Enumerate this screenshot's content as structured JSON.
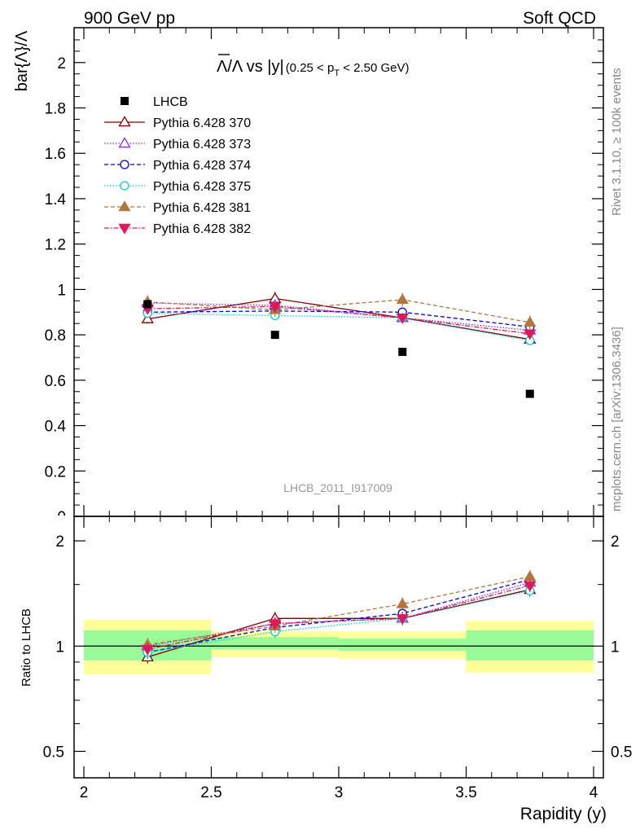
{
  "header": {
    "left": "900 GeV pp",
    "right": "Soft QCD"
  },
  "side_labels": {
    "rivet": "Rivet 3.1.10, ≥ 100k events",
    "mcplots": "mcplots.cern.ch [arXiv:1306.3436]"
  },
  "watermark": "LHCB_2011_I917009",
  "chart_data": [
    {
      "type": "scatter",
      "title_main": "Λ/Λ vs |y|",
      "title_cut": "(0.25 < p",
      "title_cut_sub": "T",
      "title_cut_end": " < 2.50 GeV)",
      "ylabel": "bar{Λ}/Λ",
      "xlim": [
        2,
        4
      ],
      "ylim": [
        0,
        2.15
      ],
      "yticks": [
        0,
        0.2,
        0.4,
        0.6,
        0.8,
        1,
        1.2,
        1.4,
        1.6,
        1.8,
        2
      ],
      "ytick_labels": [
        "0",
        "0.2",
        "0.4",
        "0.6",
        "0.8",
        "1",
        "1.2",
        "1.4",
        "1.6",
        "1.8",
        "2"
      ],
      "x": [
        2.25,
        2.75,
        3.25,
        3.75
      ],
      "data": {
        "name": "LHCB",
        "values": [
          0.935,
          0.8,
          0.725,
          0.54
        ],
        "color": "#000000"
      },
      "series": [
        {
          "name": "Pythia 6.428 370",
          "values": [
            0.87,
            0.96,
            0.875,
            0.78
          ],
          "err": [
            0.02,
            0.03,
            0.02,
            0.02
          ],
          "color": "#7f0000",
          "dash": "",
          "marker": "triangle-open"
        },
        {
          "name": "Pythia 6.428 373",
          "values": [
            0.94,
            0.93,
            0.875,
            0.82
          ],
          "err": [
            0.02,
            0.02,
            0.02,
            0.02
          ],
          "color": "#8a2be2",
          "dash": "1.5,2",
          "marker": "triangle-open"
        },
        {
          "name": "Pythia 6.428 374",
          "values": [
            0.9,
            0.905,
            0.9,
            0.835
          ],
          "err": [
            0.02,
            0.02,
            0.02,
            0.02
          ],
          "color": "#0000e0",
          "dash": "5,3",
          "marker": "circle-open"
        },
        {
          "name": "Pythia 6.428 375",
          "values": [
            0.895,
            0.885,
            0.875,
            0.775
          ],
          "err": [
            0.02,
            0.02,
            0.02,
            0.02
          ],
          "color": "#00ced1",
          "dash": "1.5,2",
          "marker": "circle-open"
        },
        {
          "name": "Pythia 6.428 381",
          "values": [
            0.945,
            0.91,
            0.955,
            0.855
          ],
          "err": [
            0.03,
            0.03,
            0.03,
            0.03
          ],
          "color": "#b07840",
          "dash": "5,3",
          "marker": "triangle-filled"
        },
        {
          "name": "Pythia 6.428 382",
          "values": [
            0.915,
            0.925,
            0.875,
            0.805
          ],
          "err": [
            0.02,
            0.02,
            0.02,
            0.02
          ],
          "color": "#e0185a",
          "dash": "6,2,1.5,2",
          "marker": "triangle-down-filled"
        }
      ]
    },
    {
      "type": "line",
      "ylabel": "Ratio to LHCB",
      "xlabel": "Rapidity (y)",
      "scale": "log",
      "xlim": [
        2,
        4
      ],
      "ylim": [
        0.42,
        2.35
      ],
      "xticks": [
        2,
        2.5,
        3,
        3.5,
        4
      ],
      "xtick_labels": [
        "2",
        "2.5",
        "3",
        "3.5",
        "4"
      ],
      "yticks": [
        0.5,
        1,
        2
      ],
      "ytick_labels": [
        "0.5",
        "1",
        "2"
      ],
      "reference": 1,
      "bands": [
        {
          "x": [
            2,
            2.5
          ],
          "inner": [
            0.91,
            1.11
          ],
          "outer": [
            0.83,
            1.19
          ]
        },
        {
          "x": [
            2.5,
            3
          ],
          "inner": [
            0.98,
            1.06
          ],
          "outer": [
            0.93,
            1.1
          ]
        },
        {
          "x": [
            3,
            3.5
          ],
          "inner": [
            0.97,
            1.05
          ],
          "outer": [
            0.92,
            1.1
          ]
        },
        {
          "x": [
            3.5,
            4
          ],
          "inner": [
            0.91,
            1.11
          ],
          "outer": [
            0.84,
            1.18
          ]
        }
      ],
      "band_colors": {
        "inner": "#98fb98",
        "outer": "#ffff99"
      },
      "x": [
        2.25,
        2.75,
        3.25,
        3.75
      ],
      "series": [
        {
          "name": "Pythia 6.428 370",
          "values": [
            0.93,
            1.2,
            1.2,
            1.45
          ]
        },
        {
          "name": "Pythia 6.428 373",
          "values": [
            1.0,
            1.16,
            1.2,
            1.52
          ]
        },
        {
          "name": "Pythia 6.428 374",
          "values": [
            0.96,
            1.13,
            1.24,
            1.55
          ]
        },
        {
          "name": "Pythia 6.428 375",
          "values": [
            0.96,
            1.1,
            1.2,
            1.44
          ]
        },
        {
          "name": "Pythia 6.428 381",
          "values": [
            1.01,
            1.14,
            1.32,
            1.58
          ]
        },
        {
          "name": "Pythia 6.428 382",
          "values": [
            0.98,
            1.16,
            1.2,
            1.49
          ]
        }
      ]
    }
  ]
}
